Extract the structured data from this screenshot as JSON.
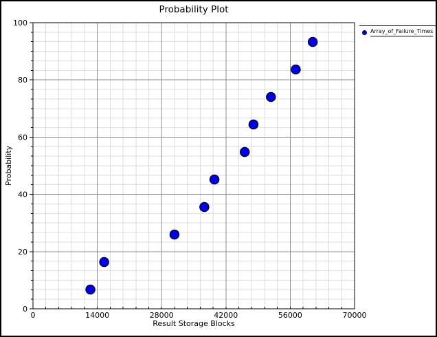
{
  "window": {
    "background": "#FFFFFF",
    "border_color": "#000000"
  },
  "chart_data": {
    "type": "scatter",
    "title": "Probability Plot",
    "xlabel": "Result Storage Blocks",
    "ylabel": "Probability",
    "xlim": [
      0,
      70000
    ],
    "ylim": [
      0,
      100
    ],
    "x_major_step": 14000,
    "x_minor_divisions": 5,
    "y_major_step": 20,
    "y_minor_divisions": 6,
    "x_tick_labels": [
      "0",
      "14000",
      "28000",
      "42000",
      "56000",
      "70000"
    ],
    "y_tick_labels": [
      "0",
      "20",
      "40",
      "60",
      "80",
      "100"
    ],
    "grid": true,
    "legend_position": "top-right",
    "colors": {
      "major_grid": "#8C8C8C",
      "minor_grid": "#DDDDDD",
      "axis": "#000000",
      "marker_fill": "#0000EE",
      "marker_edge": "#000033",
      "text": "#000000"
    },
    "series": [
      {
        "name": "Array_of_Failure_Times",
        "marker": "circle",
        "points": [
          {
            "x": 12500,
            "y": 6.73
          },
          {
            "x": 15500,
            "y": 16.35
          },
          {
            "x": 30800,
            "y": 25.96
          },
          {
            "x": 37300,
            "y": 35.58
          },
          {
            "x": 39500,
            "y": 45.19
          },
          {
            "x": 46100,
            "y": 54.81
          },
          {
            "x": 48000,
            "y": 64.42
          },
          {
            "x": 51800,
            "y": 74.04
          },
          {
            "x": 57200,
            "y": 83.65
          },
          {
            "x": 60900,
            "y": 93.27
          }
        ]
      }
    ]
  }
}
